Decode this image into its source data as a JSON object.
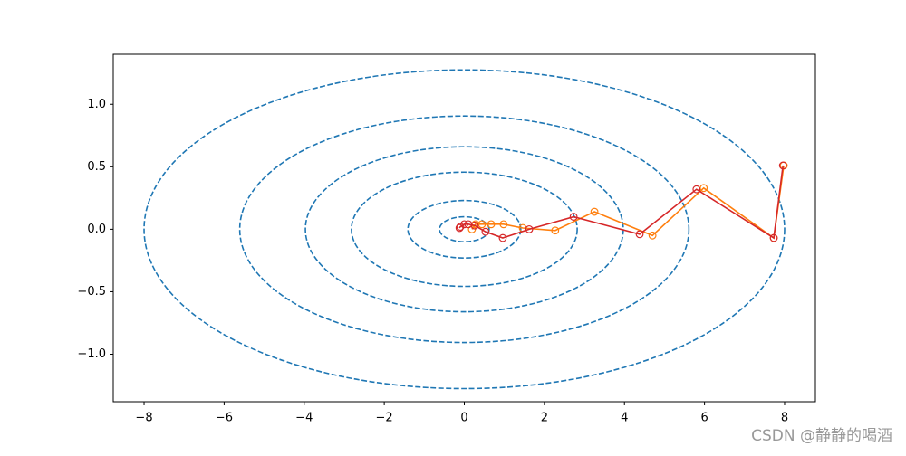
{
  "chart_data": {
    "type": "contour-path",
    "xlim": [
      -8.77,
      8.77
    ],
    "ylim": [
      -1.38,
      1.4
    ],
    "xticks": [
      {
        "value": -8,
        "label": "−8"
      },
      {
        "value": -6,
        "label": "−6"
      },
      {
        "value": -4,
        "label": "−4"
      },
      {
        "value": -2,
        "label": "−2"
      },
      0,
      2,
      4,
      6,
      8
    ],
    "yticks": [
      {
        "value": -1.0,
        "label": "−1.0"
      },
      {
        "value": -0.5,
        "label": "−0.5"
      },
      {
        "value": 0.0,
        "label": "0.0"
      },
      {
        "value": 0.5,
        "label": "0.5"
      },
      {
        "value": 1.0,
        "label": "1.0"
      }
    ],
    "contours": {
      "color": "#1f77b4",
      "rx": [
        8.0,
        5.61,
        3.97,
        2.82,
        1.41,
        0.62
      ],
      "ry": [
        1.275,
        0.906,
        0.66,
        0.457,
        0.23,
        0.1
      ]
    },
    "series": [
      {
        "color": "#ff7f0e",
        "x": [
          7.98,
          7.73,
          5.98,
          4.7,
          3.25,
          2.27,
          1.46,
          0.98,
          0.67,
          0.44,
          0.28,
          0.19
        ],
        "values": [
          0.51,
          -0.07,
          0.33,
          -0.05,
          0.14,
          -0.01,
          0.01,
          0.04,
          0.04,
          0.04,
          0.04,
          0.0
        ]
      },
      {
        "color": "#d62728",
        "x": [
          7.96,
          7.73,
          5.8,
          4.38,
          2.73,
          1.62,
          0.96,
          0.53,
          0.26,
          0.1,
          0.0,
          -0.1,
          -0.12
        ],
        "values": [
          0.51,
          -0.07,
          0.32,
          -0.04,
          0.1,
          0.0,
          -0.07,
          -0.02,
          0.03,
          0.04,
          0.04,
          0.02,
          0.01
        ]
      }
    ],
    "watermark": "CSDN @静静的喝酒"
  }
}
